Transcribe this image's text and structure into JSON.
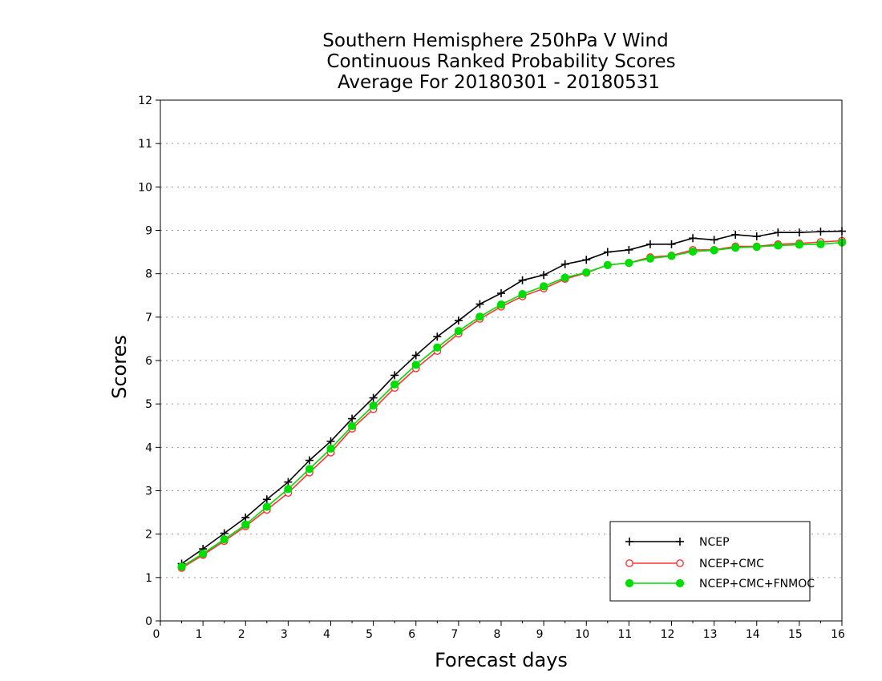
{
  "chart_data": {
    "type": "line",
    "title_lines": [
      "Southern Hemisphere 250hPa V Wind",
      "Continuous Ranked Probability Scores",
      "Average For 20180301 - 20180531"
    ],
    "xlabel": "Forecast days",
    "ylabel": "Scores",
    "xlim": [
      0,
      16
    ],
    "ylim": [
      0,
      12
    ],
    "x_ticks": [
      0,
      1,
      2,
      3,
      4,
      5,
      6,
      7,
      8,
      9,
      10,
      11,
      12,
      13,
      14,
      15,
      16
    ],
    "y_ticks": [
      0,
      1,
      2,
      3,
      4,
      5,
      6,
      7,
      8,
      9,
      10,
      11,
      12
    ],
    "grid": true,
    "legend_position": "bottom-right",
    "x": [
      0.5,
      1,
      1.5,
      2,
      2.5,
      3,
      3.5,
      4,
      4.5,
      5,
      5.5,
      6,
      6.5,
      7,
      7.5,
      8,
      8.5,
      9,
      9.5,
      10,
      10.5,
      11,
      11.5,
      12,
      12.5,
      13,
      13.5,
      14,
      14.5,
      15,
      15.5,
      16
    ],
    "series": [
      {
        "name": "NCEP",
        "color": "#000000",
        "marker": "plus",
        "values": [
          1.32,
          1.66,
          2.02,
          2.38,
          2.8,
          3.2,
          3.7,
          4.14,
          4.66,
          5.14,
          5.66,
          6.12,
          6.55,
          6.92,
          7.3,
          7.55,
          7.85,
          7.97,
          8.22,
          8.32,
          8.5,
          8.55,
          8.68,
          8.68,
          8.82,
          8.78,
          8.9,
          8.86,
          8.95,
          8.95,
          8.97,
          8.98
        ]
      },
      {
        "name": "NCEP+CMC",
        "color": "#ff3333",
        "marker": "open-circle",
        "values": [
          1.22,
          1.52,
          1.84,
          2.18,
          2.56,
          2.95,
          3.42,
          3.88,
          4.43,
          4.88,
          5.37,
          5.82,
          6.22,
          6.62,
          6.96,
          7.24,
          7.48,
          7.66,
          7.88,
          8.02,
          8.2,
          8.25,
          8.38,
          8.42,
          8.55,
          8.55,
          8.63,
          8.63,
          8.68,
          8.7,
          8.73,
          8.76
        ]
      },
      {
        "name": "NCEP+CMC+FNMOC",
        "color": "#00dd00",
        "marker": "filled-circle",
        "values": [
          1.25,
          1.55,
          1.88,
          2.22,
          2.63,
          3.04,
          3.5,
          3.97,
          4.49,
          4.96,
          5.45,
          5.9,
          6.3,
          6.68,
          7.01,
          7.29,
          7.53,
          7.71,
          7.91,
          8.03,
          8.2,
          8.25,
          8.35,
          8.41,
          8.51,
          8.54,
          8.6,
          8.62,
          8.65,
          8.67,
          8.68,
          8.72
        ]
      }
    ]
  }
}
